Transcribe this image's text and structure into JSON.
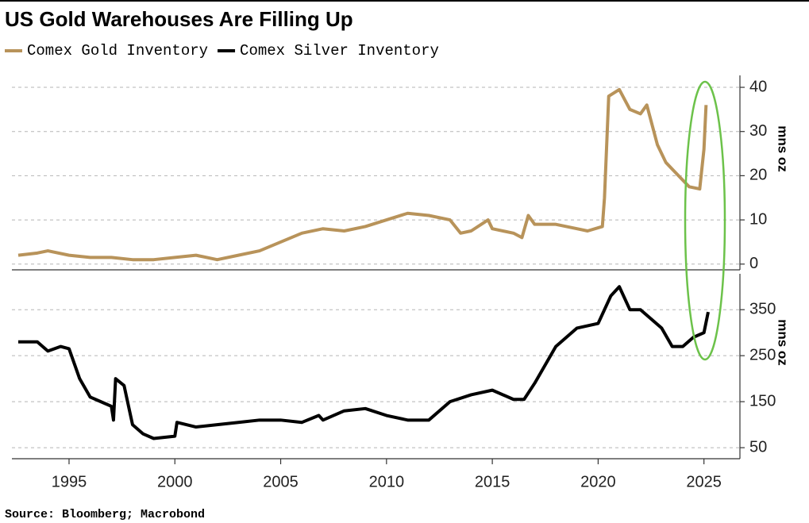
{
  "chart_data": [
    {
      "type": "line",
      "title": "US Gold Warehouses Are Filling Up",
      "y_label": "mns oz",
      "xlim": [
        1992.3,
        2026.7
      ],
      "ylim": [
        -1.3,
        42.7
      ],
      "yticks": [
        0,
        10,
        20,
        30,
        40
      ],
      "grid": true,
      "x": [
        1992.6,
        1993.5,
        1994,
        1995,
        1996,
        1997,
        1998,
        1999,
        2000,
        2001,
        2002,
        2003,
        2004,
        2005,
        2006,
        2007,
        2008,
        2009,
        2010,
        2011,
        2012,
        2013,
        2013.5,
        2014,
        2014.8,
        2015,
        2016,
        2016.4,
        2016.7,
        2017,
        2018,
        2019,
        2019.5,
        2020.2,
        2020.3,
        2020.5,
        2021,
        2021.5,
        2022,
        2022.3,
        2022.8,
        2023.2,
        2023.6,
        2024,
        2024.3,
        2024.8,
        2025,
        2025.1
      ],
      "series": [
        {
          "name": "Comex Gold Inventory",
          "color": "#b8935a",
          "values": [
            2,
            2.5,
            3,
            2,
            1.5,
            1.5,
            1,
            1,
            1.5,
            2,
            1,
            2,
            3,
            5,
            7,
            8,
            7.5,
            8.5,
            10,
            11.5,
            11,
            10,
            7,
            7.5,
            10,
            8,
            7,
            6,
            11,
            9,
            9,
            8,
            7.5,
            8.5,
            15,
            38,
            39.5,
            35,
            34,
            36,
            27,
            23,
            21,
            19,
            17.5,
            17,
            26,
            36
          ]
        }
      ]
    },
    {
      "type": "line",
      "y_label": "mns oz",
      "source": "Source: Bloomberg; Macrobond",
      "xlim": [
        1992.3,
        2026.7
      ],
      "xticks": [
        1995,
        2000,
        2005,
        2010,
        2015,
        2020,
        2025
      ],
      "ylim": [
        26,
        428
      ],
      "yticks": [
        50,
        150,
        250,
        350
      ],
      "grid": true,
      "x": [
        1992.6,
        1993.5,
        1994,
        1994.6,
        1995,
        1995.5,
        1996,
        1996.5,
        1997,
        1997.1,
        1997.2,
        1997.6,
        1998,
        1998.5,
        1999,
        2000,
        2000.1,
        2001,
        2002,
        2003,
        2004,
        2005,
        2006,
        2006.8,
        2007,
        2008,
        2009,
        2010,
        2011,
        2012,
        2013,
        2014,
        2015,
        2016,
        2016.5,
        2017,
        2018,
        2019,
        2020,
        2020.6,
        2021,
        2021.5,
        2022,
        2023,
        2023.5,
        2024,
        2024.5,
        2025,
        2025.2
      ],
      "series": [
        {
          "name": "Comex Silver Inventory",
          "color": "#000000",
          "values": [
            280,
            280,
            260,
            270,
            265,
            200,
            160,
            150,
            140,
            110,
            200,
            185,
            100,
            80,
            70,
            75,
            105,
            95,
            100,
            105,
            110,
            110,
            105,
            120,
            110,
            130,
            135,
            120,
            110,
            110,
            150,
            165,
            175,
            155,
            155,
            190,
            270,
            310,
            320,
            380,
            400,
            350,
            350,
            310,
            270,
            270,
            290,
            300,
            345
          ]
        }
      ]
    }
  ]
}
